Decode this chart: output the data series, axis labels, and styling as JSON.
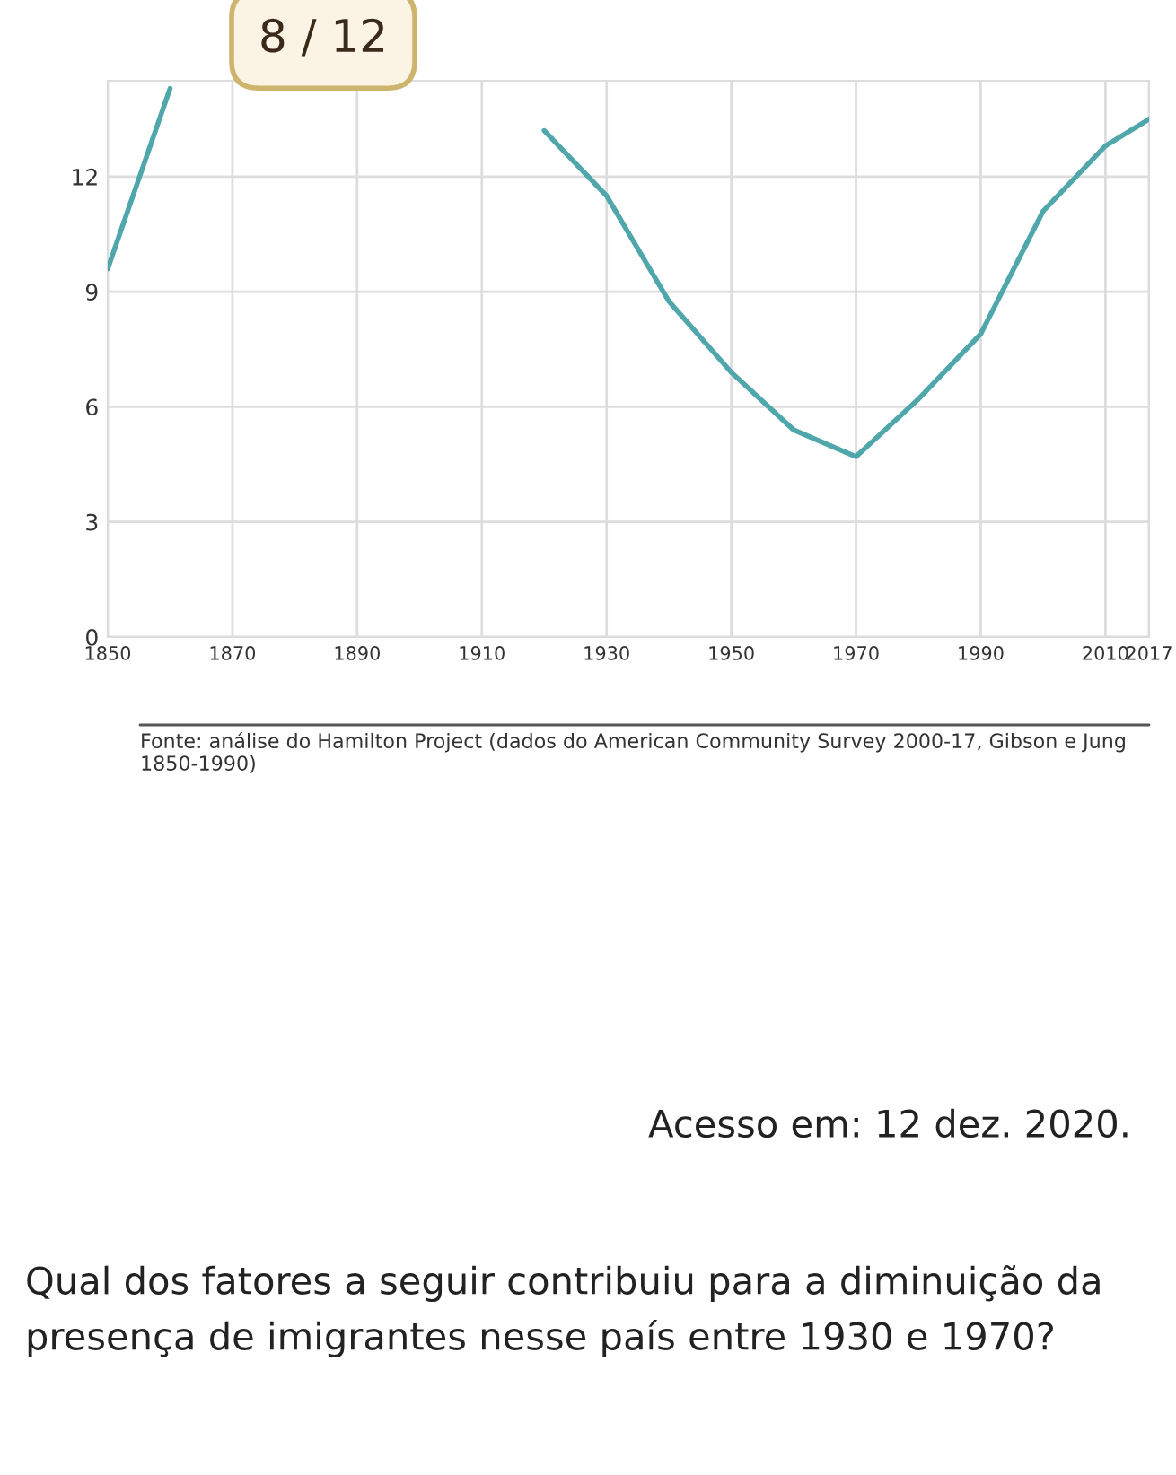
{
  "chart_data": {
    "type": "line",
    "x": [
      1850,
      1860,
      1870,
      1880,
      1890,
      1900,
      1910,
      1920,
      1930,
      1940,
      1950,
      1960,
      1970,
      1980,
      1990,
      2000,
      2010,
      2017
    ],
    "series": [
      {
        "color": "#4fa6ab",
        "values": [
          9.6,
          14.3,
          null,
          null,
          null,
          null,
          null,
          13.2,
          11.5,
          8.75,
          6.9,
          5.4,
          4.7,
          6.2,
          7.9,
          11.1,
          12.8,
          13.5
        ]
      }
    ],
    "xlim": [
      1850,
      2017
    ],
    "xticks": [
      1850,
      1870,
      1890,
      1910,
      1930,
      1950,
      1970,
      1990,
      2010,
      2017
    ],
    "ylim": [
      0,
      14.5
    ],
    "yticks": [
      0,
      3,
      6,
      9,
      12
    ],
    "grid": true,
    "legend": false,
    "marker": "none",
    "line_style": "solid",
    "annotations": [
      "8 / 12",
      "Fonte: análise do Hamilton Project (dados do American Community Survey 2000-17, Gibson e Jung 1850-1990)",
      "Acesso em: 12 dez. 2020.",
      "Qual dos fatores a seguir contribuiu para a diminuição da presença de imigrantes nesse país entre 1930 e 1970?"
    ]
  }
}
